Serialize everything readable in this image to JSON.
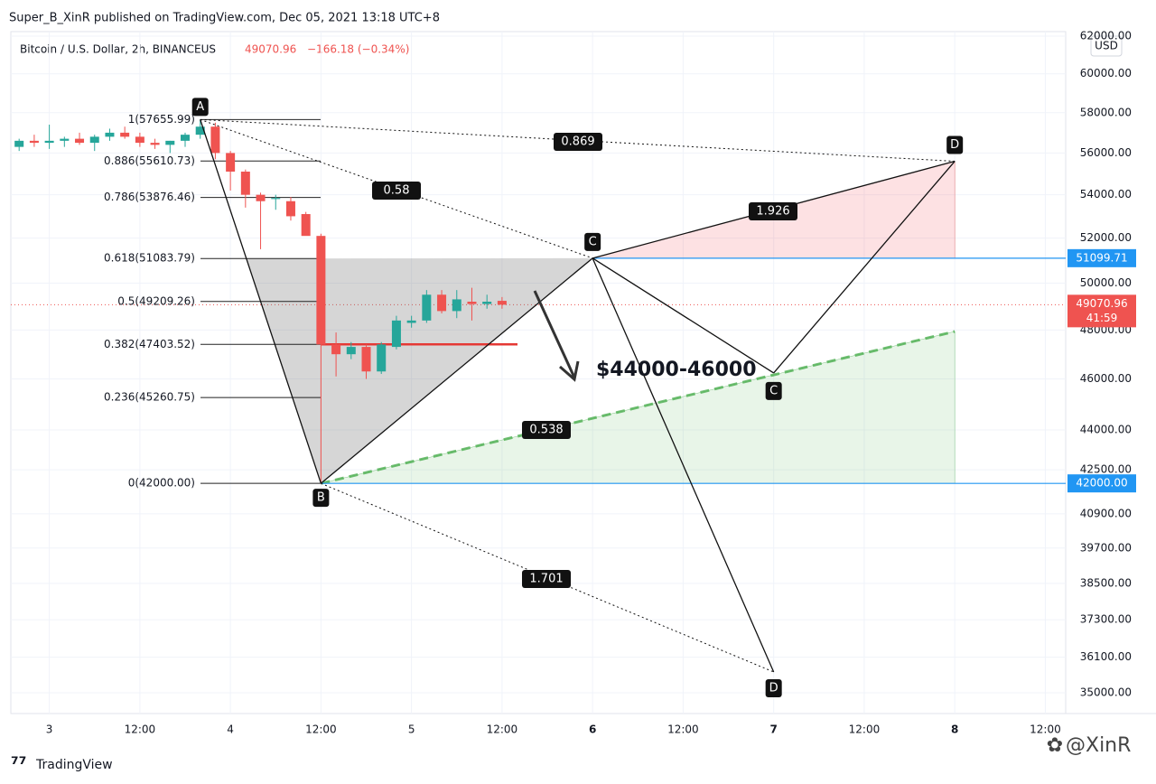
{
  "header": {
    "publisher": "Super_B_XinR published on TradingView.com, Dec 05, 2021 13:18 UTC+8",
    "footer": "TradingView",
    "watermark": "@XinR"
  },
  "chart_data": {
    "type": "candlestick",
    "title": "Bitcoin / U.S. Dollar, 2h, BINANCEUS",
    "last_price": 49070.96,
    "change": "−166.18 (−0.34%)",
    "countdown": "41:59",
    "currency": "USD",
    "log_scale": true,
    "up_color": "#26a69a",
    "down_color": "#ef5350",
    "x": [
      -4,
      -2,
      0,
      2,
      4,
      6,
      8,
      10,
      12,
      14,
      16,
      18,
      20,
      22,
      24,
      26,
      28,
      30,
      32,
      34,
      36,
      38,
      40,
      42,
      44,
      46,
      48,
      50,
      52,
      54,
      56,
      58,
      60
    ],
    "open": [
      56300,
      56600,
      56500,
      56600,
      56700,
      56500,
      56800,
      57000,
      56800,
      56500,
      56400,
      56600,
      56900,
      57300,
      56000,
      55100,
      54000,
      53800,
      53700,
      53100,
      52100,
      47400,
      47000,
      47300,
      46300,
      47300,
      48300,
      48400,
      49500,
      48800,
      49200,
      49100,
      49237
    ],
    "high": [
      56700,
      56900,
      57400,
      56800,
      57000,
      56900,
      57200,
      57300,
      57000,
      56700,
      56600,
      57000,
      57655.99,
      57500,
      56100,
      55200,
      54100,
      54000,
      53900,
      53200,
      52200,
      47900,
      47500,
      47400,
      47500,
      48600,
      48600,
      49700,
      49700,
      49700,
      49800,
      49500,
      49400
    ],
    "low": [
      56100,
      56300,
      56200,
      56300,
      56400,
      56100,
      56600,
      56700,
      56300,
      56200,
      56000,
      56300,
      56700,
      55700,
      54200,
      53400,
      51500,
      53300,
      52800,
      52200,
      42000,
      46100,
      46800,
      46000,
      46200,
      47200,
      48100,
      48300,
      48700,
      48500,
      48400,
      48900,
      48900
    ],
    "close": [
      56600,
      56500,
      56600,
      56700,
      56500,
      56800,
      57000,
      56800,
      56500,
      56400,
      56600,
      56900,
      57300,
      56000,
      55100,
      54000,
      53700,
      53850,
      53000,
      52100,
      47400,
      47000,
      47300,
      46300,
      47400,
      48400,
      48400,
      49500,
      48800,
      49300,
      49100,
      49200,
      49070.96
    ],
    "xlim": [
      -5.1,
      134.7
    ],
    "ylim": [
      35000,
      62000
    ],
    "xticks": [
      {
        "value": 0,
        "label": "3"
      },
      {
        "value": 12,
        "label": "12:00"
      },
      {
        "value": 24,
        "label": "4"
      },
      {
        "value": 36,
        "label": "12:00"
      },
      {
        "value": 48,
        "label": "5"
      },
      {
        "value": 60,
        "label": "12:00"
      },
      {
        "value": 72,
        "label": "6"
      },
      {
        "value": 84,
        "label": "12:00"
      },
      {
        "value": 96,
        "label": "7"
      },
      {
        "value": 108,
        "label": "12:00"
      },
      {
        "value": 120,
        "label": "8"
      },
      {
        "value": 132,
        "label": "12:00"
      }
    ],
    "yticks": [
      {
        "value": 62000,
        "label": "62000.00"
      },
      {
        "value": 60000,
        "label": "60000.00"
      },
      {
        "value": 58000,
        "label": "58000.00"
      },
      {
        "value": 56000,
        "label": "56000.00"
      },
      {
        "value": 54000,
        "label": "54000.00"
      },
      {
        "value": 52000,
        "label": "52000.00"
      },
      {
        "value": 50000,
        "label": "50000.00"
      },
      {
        "value": 48000,
        "label": "48000.00"
      },
      {
        "value": 46000,
        "label": "46000.00"
      },
      {
        "value": 44000,
        "label": "44000.00"
      },
      {
        "value": 42500,
        "label": "42500.00"
      },
      {
        "value": 40900,
        "label": "40900.00"
      },
      {
        "value": 39700,
        "label": "39700.00"
      },
      {
        "value": 38500,
        "label": "38500.00"
      },
      {
        "value": 37300,
        "label": "37300.00"
      },
      {
        "value": 36100,
        "label": "36100.00"
      },
      {
        "value": 35000,
        "label": "35000.00"
      }
    ],
    "grid": true,
    "fib_levels": [
      {
        "label": "1(57655.99)",
        "value": 57655.99
      },
      {
        "label": "0.886(55610.73)",
        "value": 55610.73
      },
      {
        "label": "0.786(53876.46)",
        "value": 53876.46
      },
      {
        "label": "0.618(51083.79)",
        "value": 51083.79
      },
      {
        "label": "0.5(49209.26)",
        "value": 49209.26
      },
      {
        "label": "0.382(47403.52)",
        "value": 47403.52
      },
      {
        "label": "0.236(45260.75)",
        "value": 45260.75
      },
      {
        "label": "0(42000.00)",
        "value": 42000
      }
    ],
    "price_lines": [
      {
        "label": "51099.71",
        "value": 51099.71,
        "color": "#2196f3"
      },
      {
        "label": "42000.00",
        "value": 42000,
        "color": "#2196f3"
      }
    ],
    "pattern_points": [
      {
        "label": "A",
        "x": 20,
        "y": 57655.99
      },
      {
        "label": "B",
        "x": 36,
        "y": 42000
      },
      {
        "label": "C",
        "x": 72,
        "y": 51099.71
      },
      {
        "label": "D",
        "x": 120,
        "y": 55600
      },
      {
        "label": "C",
        "x": 96,
        "y": 46240
      },
      {
        "label": "D",
        "x": 96,
        "y": 35640
      }
    ],
    "green_zone_end": 47940,
    "ratios": [
      "0.869",
      "0.58",
      "1.926",
      "0.538",
      "1.701"
    ],
    "target": "$44000-46000"
  }
}
